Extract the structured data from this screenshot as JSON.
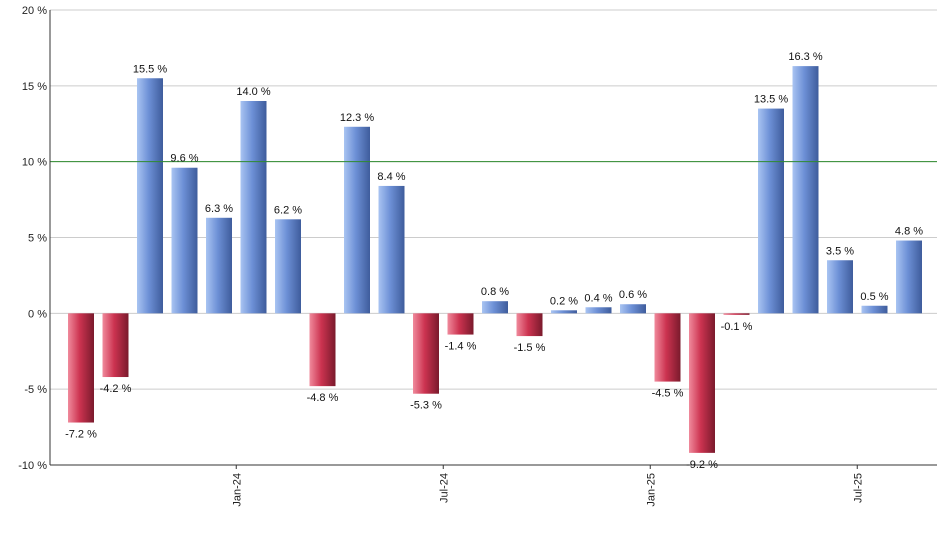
{
  "chart_data": {
    "type": "bar",
    "title": "",
    "xlabel": "",
    "ylabel": "",
    "ylim": [
      -10,
      20
    ],
    "yticks": [
      -10,
      -5,
      0,
      5,
      10,
      15,
      20
    ],
    "ytick_labels": [
      "-10 %",
      "-5 %",
      "0 %",
      "5 %",
      "10 %",
      "15 %",
      "20 %"
    ],
    "reference_line": 10,
    "values": [
      -7.2,
      -4.2,
      15.5,
      9.6,
      6.3,
      14.0,
      6.2,
      -4.8,
      12.3,
      8.4,
      -5.3,
      -1.4,
      0.8,
      -1.5,
      0.2,
      0.4,
      0.6,
      -4.5,
      -9.2,
      -0.1,
      13.5,
      16.3,
      3.5,
      0.5,
      4.8
    ],
    "labels": [
      "-7.2 %",
      "-4.2 %",
      "15.5 %",
      "9.6 %",
      "6.3 %",
      "14.0 %",
      "6.2 %",
      "-4.8 %",
      "12.3 %",
      "8.4 %",
      "-5.3 %",
      "-1.4 %",
      "0.8 %",
      "-1.5 %",
      "0.2 %",
      "0.4 %",
      "0.6 %",
      "-4.5 %",
      "-9.2 %",
      "-0.1 %",
      "13.5 %",
      "16.3 %",
      "3.5 %",
      "0.5 %",
      "4.8 %"
    ],
    "x_ticks": [
      {
        "label": "Jan-24",
        "index": 4.5
      },
      {
        "label": "Jul-24",
        "index": 10.5
      },
      {
        "label": "Jan-25",
        "index": 16.5
      },
      {
        "label": "Jul-25",
        "index": 22.5
      }
    ],
    "colors": {
      "positive_light": "#a9c4f2",
      "positive_mid": "#6d90d6",
      "positive_dark": "#3e5c9c",
      "negative_light": "#f08a9c",
      "negative_mid": "#cc3350",
      "negative_dark": "#7a1a2c",
      "reference": "#2e8b2e",
      "grid": "#cccccc",
      "axis": "#333333"
    }
  }
}
